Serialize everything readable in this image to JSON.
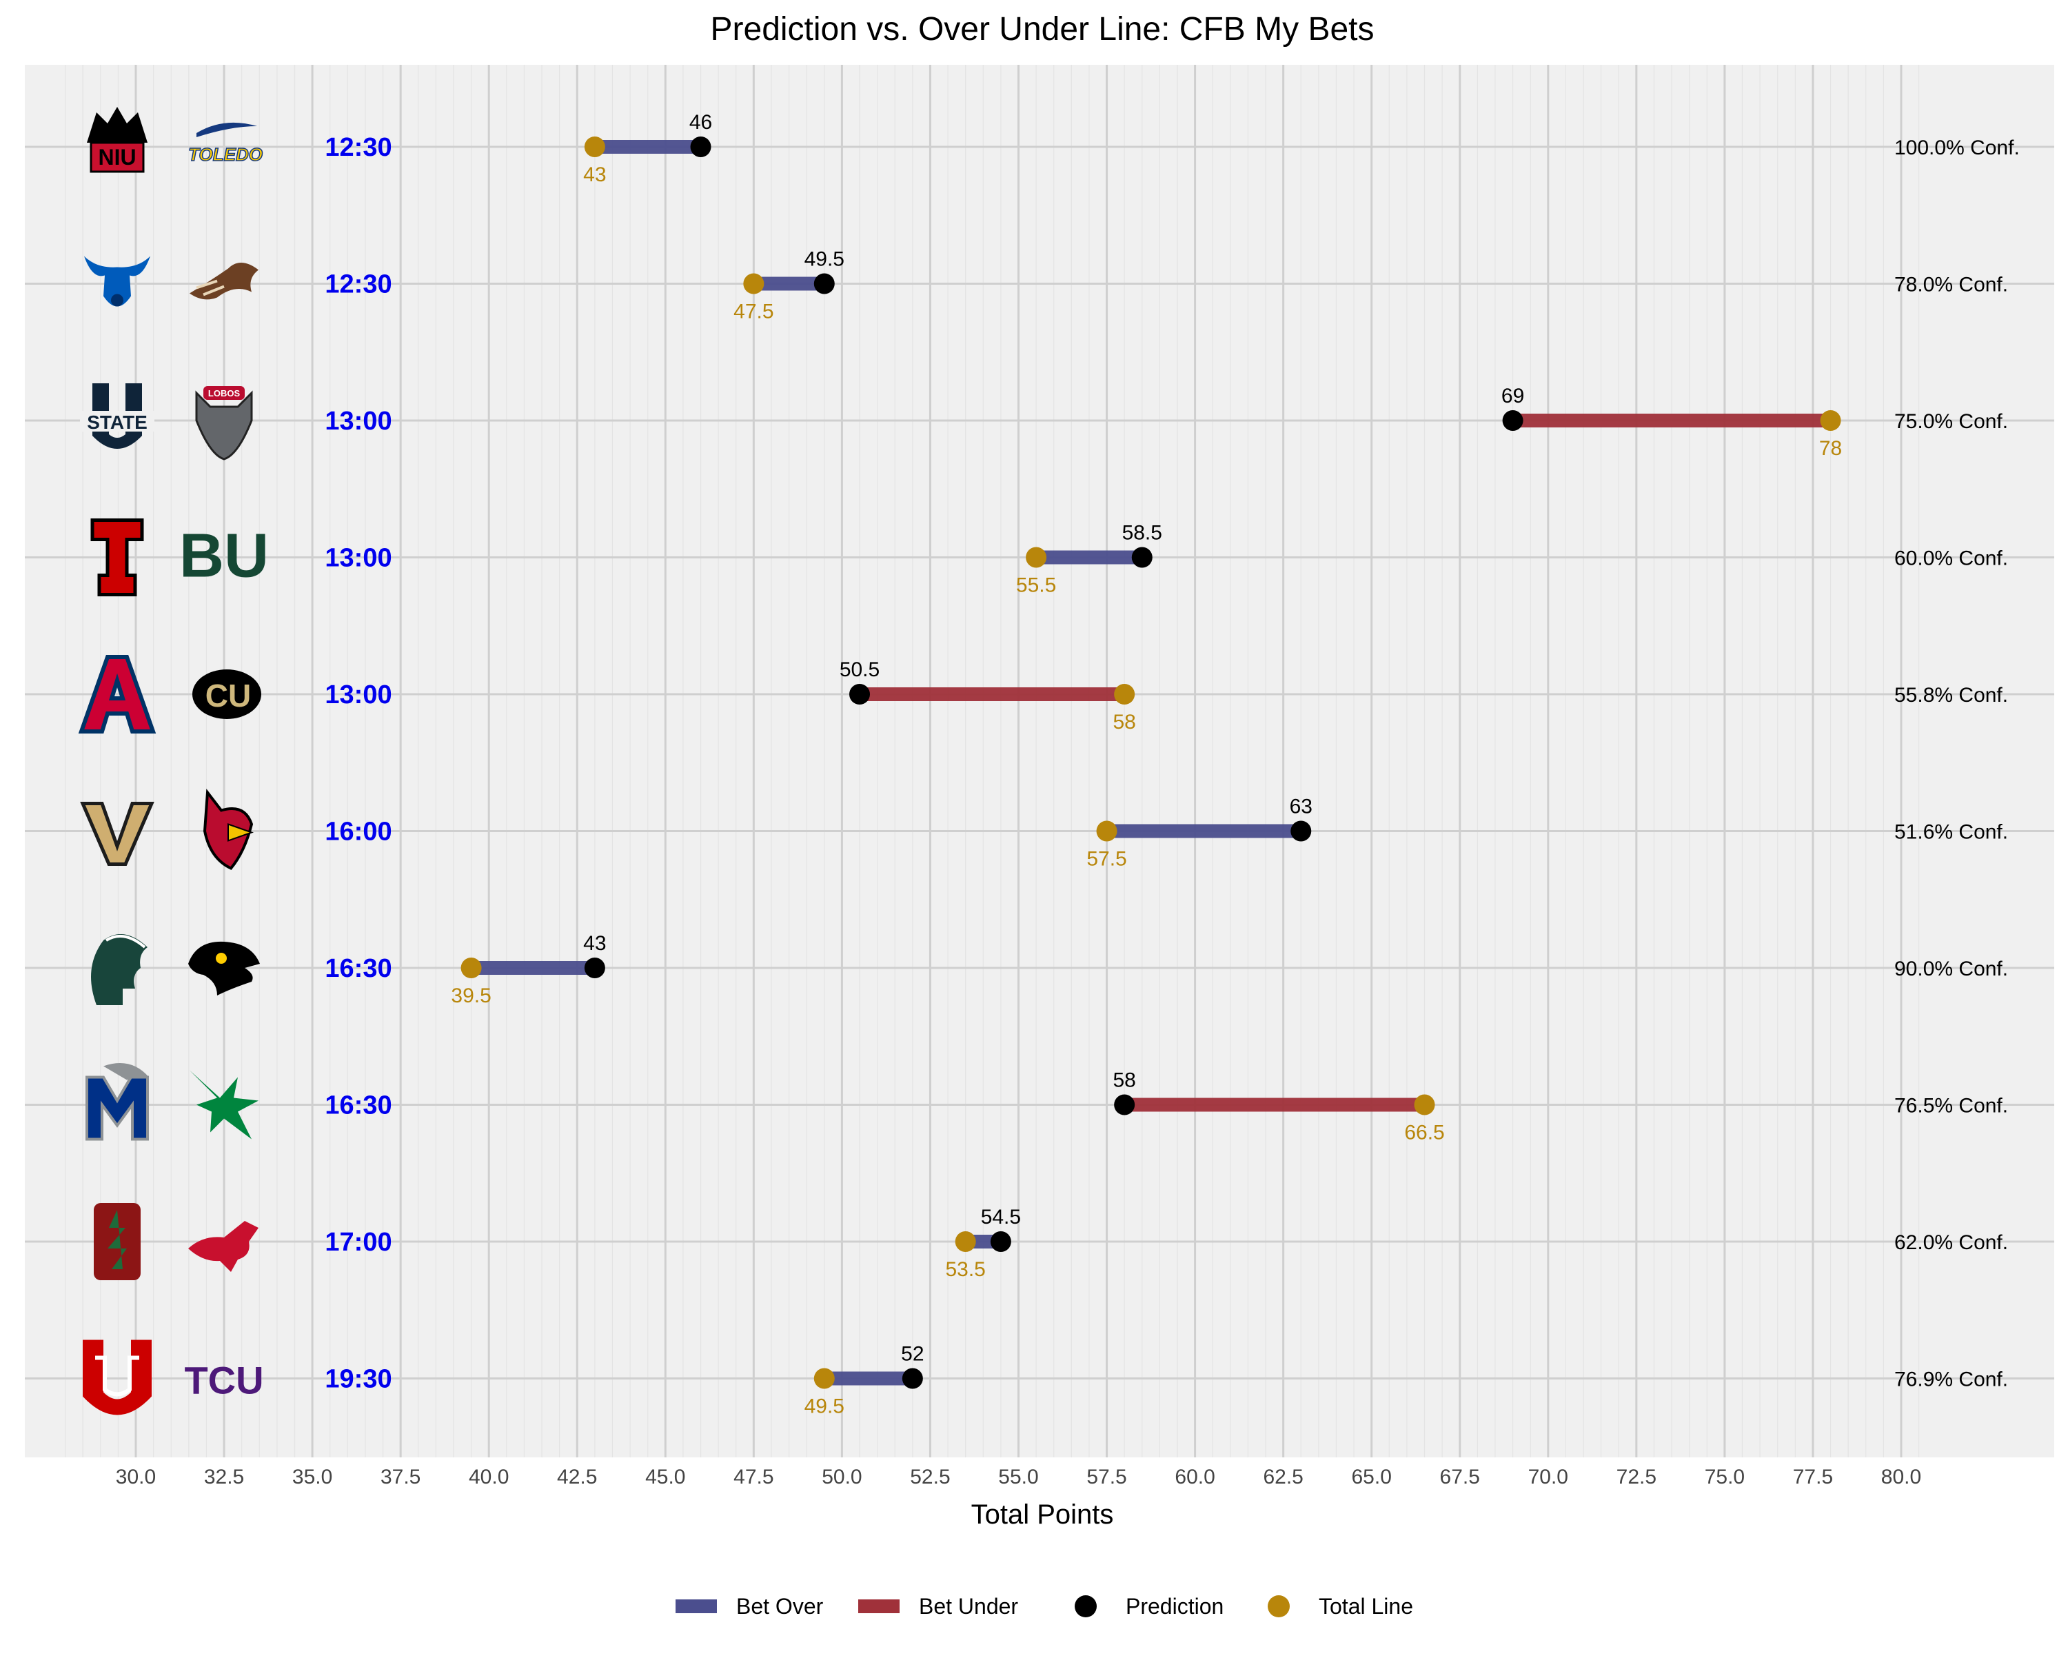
{
  "chart_data": {
    "type": "dumbbell",
    "title": "Prediction vs. Over Under Line: CFB My Bets",
    "xlabel": "Total Points",
    "ylabel": "",
    "xlim": [
      27.5,
      80.5
    ],
    "xticks": [
      "30.0",
      "32.5",
      "35.0",
      "37.5",
      "40.0",
      "42.5",
      "45.0",
      "47.5",
      "50.0",
      "52.5",
      "55.0",
      "57.5",
      "60.0",
      "62.5",
      "65.0",
      "67.5",
      "70.0",
      "72.5",
      "75.0",
      "77.5",
      "80.0"
    ],
    "grid": true,
    "legend_position": "bottom",
    "legend": [
      {
        "key": "over",
        "label": "Bet Over",
        "kind": "bar",
        "color": "#4B4E8E"
      },
      {
        "key": "under",
        "label": "Bet Under",
        "kind": "bar",
        "color": "#A0313A"
      },
      {
        "key": "pred",
        "label": "Prediction",
        "kind": "dot",
        "color": "#000000"
      },
      {
        "key": "line",
        "label": "Total Line",
        "kind": "dot",
        "color": "#B8860B"
      }
    ],
    "colors": {
      "over": "#4B4E8E",
      "under": "#A0313A",
      "prediction": "#000000",
      "total_line": "#B8860B",
      "time_label": "#0000EE",
      "panel": "#F0F0F0"
    },
    "games": [
      {
        "time": "12:30",
        "teams": [
          "NIU",
          "Toledo"
        ],
        "line": 43,
        "line_label": "43",
        "prediction": 46,
        "prediction_label": "46",
        "bet": "over",
        "conf": "100.0% Conf."
      },
      {
        "time": "12:30",
        "teams": [
          "Buffalo",
          "Western Michigan"
        ],
        "line": 47.5,
        "line_label": "47.5",
        "prediction": 49.5,
        "prediction_label": "49.5",
        "bet": "over",
        "conf": "78.0% Conf."
      },
      {
        "time": "13:00",
        "teams": [
          "Utah State",
          "New Mexico"
        ],
        "line": 78,
        "line_label": "78",
        "prediction": 69,
        "prediction_label": "69",
        "bet": "under",
        "conf": "75.0% Conf."
      },
      {
        "time": "13:00",
        "teams": [
          "Texas Tech",
          "Baylor"
        ],
        "line": 55.5,
        "line_label": "55.5",
        "prediction": 58.5,
        "prediction_label": "58.5",
        "bet": "over",
        "conf": "60.0% Conf."
      },
      {
        "time": "13:00",
        "teams": [
          "Arizona",
          "Colorado"
        ],
        "line": 58,
        "line_label": "58",
        "prediction": 50.5,
        "prediction_label": "50.5",
        "bet": "under",
        "conf": "55.8% Conf."
      },
      {
        "time": "16:00",
        "teams": [
          "Vanderbilt",
          "Ball State"
        ],
        "line": 57.5,
        "line_label": "57.5",
        "prediction": 63,
        "prediction_label": "63",
        "bet": "over",
        "conf": "51.6% Conf."
      },
      {
        "time": "16:30",
        "teams": [
          "Michigan State",
          "Iowa"
        ],
        "line": 39.5,
        "line_label": "39.5",
        "prediction": 43,
        "prediction_label": "43",
        "bet": "over",
        "conf": "90.0% Conf."
      },
      {
        "time": "16:30",
        "teams": [
          "Memphis",
          "North Texas"
        ],
        "line": 66.5,
        "line_label": "66.5",
        "prediction": 58,
        "prediction_label": "58",
        "bet": "under",
        "conf": "76.5% Conf."
      },
      {
        "time": "17:00",
        "teams": [
          "Stanford",
          "SMU"
        ],
        "line": 53.5,
        "line_label": "53.5",
        "prediction": 54.5,
        "prediction_label": "54.5",
        "bet": "over",
        "conf": "62.0% Conf."
      },
      {
        "time": "19:30",
        "teams": [
          "Utah",
          "TCU"
        ],
        "line": 49.5,
        "line_label": "49.5",
        "prediction": 52,
        "prediction_label": "52",
        "bet": "over",
        "conf": "76.9% Conf."
      }
    ]
  },
  "logos": [
    {
      "team": "NIU",
      "text": "NIU",
      "color": "#C8102E",
      "dark": "#000000"
    },
    {
      "team": "Toledo",
      "text": "TOLEDO",
      "color": "#FFCE00",
      "dark": "#15397F"
    },
    {
      "team": "Buffalo",
      "text": "",
      "color": "#005BBB",
      "dark": "#002F6C"
    },
    {
      "team": "Western Michigan",
      "text": "",
      "color": "#6C4023",
      "dark": "#3A2313"
    },
    {
      "team": "Utah State",
      "text": "STATE",
      "color": "#0F2439",
      "dark": "#0F2439"
    },
    {
      "team": "New Mexico",
      "text": "LOBOS",
      "color": "#BA0C2F",
      "dark": "#63666A"
    },
    {
      "team": "Texas Tech",
      "text": "T",
      "color": "#CC0000",
      "dark": "#000000"
    },
    {
      "team": "Baylor",
      "text": "BU",
      "color": "#154734",
      "dark": "#154734"
    },
    {
      "team": "Arizona",
      "text": "A",
      "color": "#CC0033",
      "dark": "#003366"
    },
    {
      "team": "Colorado",
      "text": "CU",
      "color": "#CFB87C",
      "dark": "#000000"
    },
    {
      "team": "Vanderbilt",
      "text": "V",
      "color": "#CFAE70",
      "dark": "#1C1C1C"
    },
    {
      "team": "Ball State",
      "text": "",
      "color": "#BA0C2F",
      "dark": "#000000"
    },
    {
      "team": "Michigan State",
      "text": "",
      "color": "#18453B",
      "dark": "#18453B"
    },
    {
      "team": "Iowa",
      "text": "",
      "color": "#000000",
      "dark": "#FFCD00"
    },
    {
      "team": "Memphis",
      "text": "M",
      "color": "#003087",
      "dark": "#8E9295"
    },
    {
      "team": "North Texas",
      "text": "",
      "color": "#00853E",
      "dark": "#004B23"
    },
    {
      "team": "Stanford",
      "text": "S",
      "color": "#8C1515",
      "dark": "#8C1515"
    },
    {
      "team": "SMU",
      "text": "",
      "color": "#C8102E",
      "dark": "#0033A0"
    },
    {
      "team": "Utah",
      "text": "U",
      "color": "#CC0000",
      "dark": "#CC0000"
    },
    {
      "team": "TCU",
      "text": "TCU",
      "color": "#4D1979",
      "dark": "#4D1979"
    }
  ]
}
